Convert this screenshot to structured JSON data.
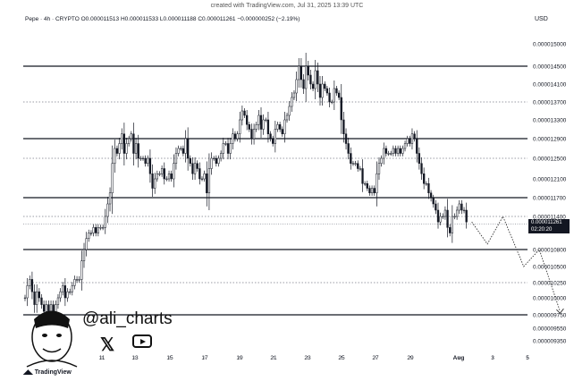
{
  "header": {
    "created": "created with TradingView.com, Jul 31, 2025 13:39 UTC",
    "ohlc": "Pepe · 4h · CRYPTO  O0.000011513  H0.000011533  L0.000011188  C0.000011261  −0.000000252 (−2.19%)",
    "currency": "USD"
  },
  "price_tag": {
    "price": "0.000011261",
    "countdown": "02:20:20"
  },
  "branding": {
    "handle": "@ali_charts",
    "x_icon": "x-logo-icon",
    "youtube_icon": "youtube-icon",
    "footer": "TradingView"
  },
  "colors": {
    "candle": "#131722",
    "level": "#131722",
    "dotted": "#787b86"
  },
  "chart_data": {
    "type": "candlestick",
    "title": "Pepe · 4h · CRYPTO",
    "y_ticks": [
      "0.000015000",
      "0.000014500",
      "0.000014100",
      "0.000013700",
      "0.000013300",
      "0.000012900",
      "0.000012500",
      "0.000012100",
      "0.000011700",
      "0.000011400",
      "0.000010800",
      "0.000010500",
      "0.000010250",
      "0.000010000",
      "0.000009750",
      "0.000009550",
      "0.000009350"
    ],
    "x_ticks": [
      "11",
      "13",
      "15",
      "17",
      "19",
      "21",
      "23",
      "25",
      "27",
      "29",
      "Aug",
      "3",
      "5"
    ],
    "solid_levels": [
      1.45e-05,
      1.29e-05,
      1.17e-05,
      1.08e-05,
      9.75e-06
    ],
    "dotted_levels": [
      1.37e-05,
      1.25e-05,
      1.14e-05,
      1.025e-05
    ],
    "candles_close": [
      1e-05,
      1.02e-05,
      1.03e-05,
      1.01e-05,
      9.9e-06,
      1.01e-05,
      1e-05,
      9.9e-06,
      9.8e-06,
      9.9e-06,
      9.8e-06,
      9.9e-06,
      9.8e-06,
      9.9e-06,
      1e-05,
      1.01e-05,
      1.02e-05,
      1e-05,
      1.01e-05,
      1.01e-05,
      1.02e-05,
      1.03e-05,
      1.03e-05,
      1.03e-05,
      1.06e-05,
      1.08e-05,
      1.1e-05,
      1.11e-05,
      1.11e-05,
      1.12e-05,
      1.11e-05,
      1.12e-05,
      1.12e-05,
      1.12e-05,
      1.14e-05,
      1.16e-05,
      1.18e-05,
      1.24e-05,
      1.27e-05,
      1.26e-05,
      1.28e-05,
      1.3e-05,
      1.26e-05,
      1.28e-05,
      1.29e-05,
      1.3e-05,
      1.26e-05,
      1.28e-05,
      1.25e-05,
      1.25e-05,
      1.25e-05,
      1.24e-05,
      1.25e-05,
      1.22e-05,
      1.19e-05,
      1.21e-05,
      1.22e-05,
      1.22e-05,
      1.23e-05,
      1.21e-05,
      1.21e-05,
      1.22e-05,
      1.21e-05,
      1.24e-05,
      1.26e-05,
      1.27e-05,
      1.27e-05,
      1.26e-05,
      1.29e-05,
      1.25e-05,
      1.24e-05,
      1.22e-05,
      1.24e-05,
      1.23e-05,
      1.21e-05,
      1.21e-05,
      1.22e-05,
      1.18e-05,
      1.23e-05,
      1.25e-05,
      1.25e-05,
      1.24e-05,
      1.25e-05,
      1.26e-05,
      1.28e-05,
      1.28e-05,
      1.26e-05,
      1.28e-05,
      1.3e-05,
      1.29e-05,
      1.3e-05,
      1.33e-05,
      1.35e-05,
      1.34e-05,
      1.32e-05,
      1.31e-05,
      1.29e-05,
      1.31e-05,
      1.32e-05,
      1.34e-05,
      1.31e-05,
      1.33e-05,
      1.33e-05,
      1.3e-05,
      1.29e-05,
      1.28e-05,
      1.31e-05,
      1.32e-05,
      1.31e-05,
      1.3e-05,
      1.33e-05,
      1.34e-05,
      1.36e-05,
      1.38e-05,
      1.39e-05,
      1.42e-05,
      1.45e-05,
      1.42e-05,
      1.4e-05,
      1.45e-05,
      1.43e-05,
      1.41e-05,
      1.4e-05,
      1.44e-05,
      1.41e-05,
      1.38e-05,
      1.41e-05,
      1.4e-05,
      1.39e-05,
      1.37e-05,
      1.37e-05,
      1.4e-05,
      1.39e-05,
      1.38e-05,
      1.33e-05,
      1.3e-05,
      1.28e-05,
      1.26e-05,
      1.24e-05,
      1.24e-05,
      1.24e-05,
      1.23e-05,
      1.23e-05,
      1.2e-05,
      1.2e-05,
      1.19e-05,
      1.18e-05,
      1.19e-05,
      1.18e-05,
      1.22e-05,
      1.24e-05,
      1.25e-05,
      1.27e-05,
      1.26e-05,
      1.26e-05,
      1.26e-05,
      1.27e-05,
      1.26e-05,
      1.27e-05,
      1.26e-05,
      1.27e-05,
      1.28e-05,
      1.29e-05,
      1.28e-05,
      1.3e-05,
      1.29e-05,
      1.26e-05,
      1.24e-05,
      1.22e-05,
      1.2e-05,
      1.2e-05,
      1.18e-05,
      1.17e-05,
      1.16e-05,
      1.15e-05,
      1.13e-05,
      1.14e-05,
      1.14e-05,
      1.15e-05,
      1.12e-05,
      1.11e-05,
      1.14e-05,
      1.14e-05,
      1.15e-05,
      1.16e-05,
      1.15e-05,
      1.15e-05,
      1.13e-05
    ],
    "projection_path": [
      [
        1.13e-05,
        0
      ],
      [
        1.09e-05,
        3
      ],
      [
        1.14e-05,
        6
      ],
      [
        1.05e-05,
        10
      ],
      [
        1.08e-05,
        13
      ],
      [
        9.8e-06,
        17
      ]
    ],
    "last_price": 1.1261e-05
  }
}
